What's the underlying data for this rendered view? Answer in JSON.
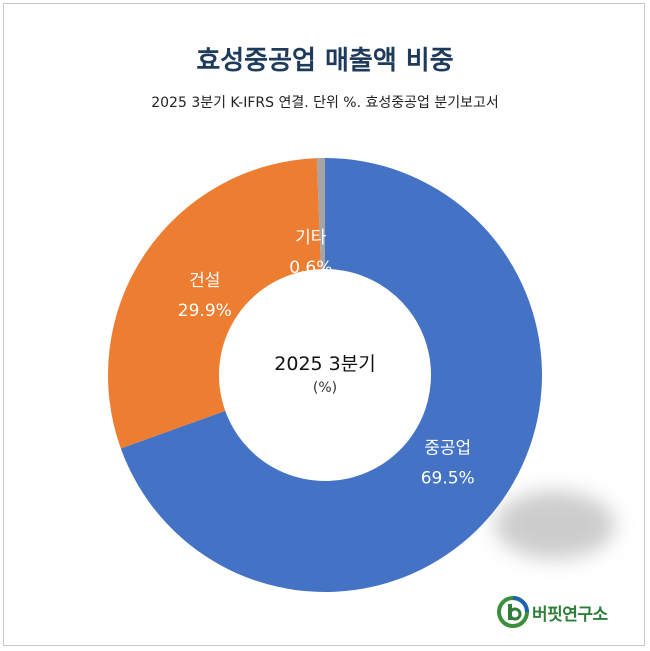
{
  "chart_data": {
    "type": "pie",
    "title": "효성중공업 매출액 비중",
    "subtitle": "2025 3분기 K-IFRS 연결. 단위 %. 효성중공업 분기보고서",
    "center_label": "2025 3분기",
    "center_sublabel": "(%)",
    "slices": [
      {
        "name": "중공업",
        "value": 69.5,
        "label": "69.5%",
        "color": "#4472c4"
      },
      {
        "name": "건설",
        "value": 29.9,
        "label": "29.9%",
        "color": "#ed7d31"
      },
      {
        "name": "기타",
        "value": 0.6,
        "label": "0.6%",
        "color": "#a5a5a5"
      }
    ]
  },
  "brand": {
    "name": "버핏연구소"
  }
}
